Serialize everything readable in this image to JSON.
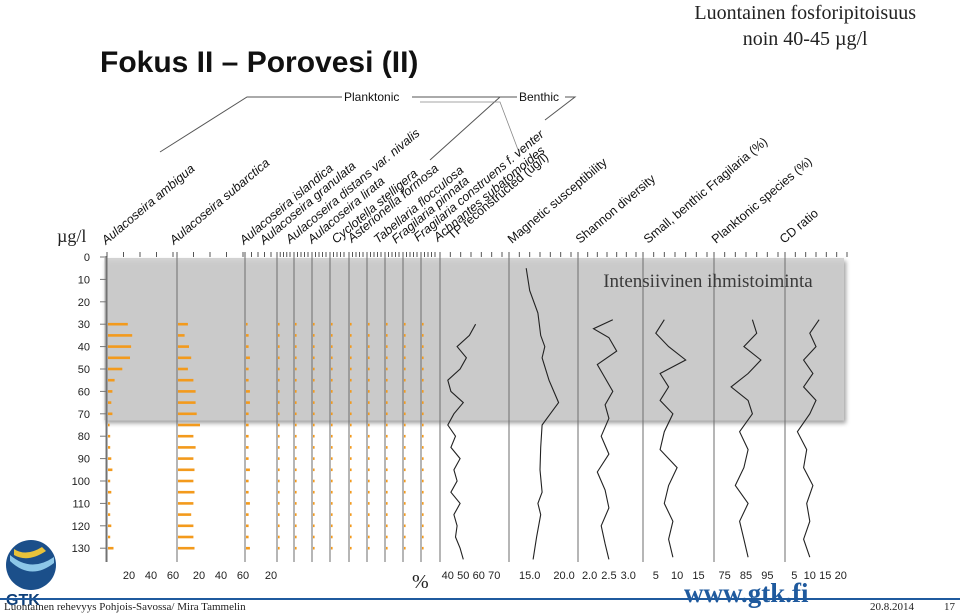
{
  "slide": {
    "title": "Fokus II – Porovesi (II)",
    "note_line1": "Luontainen fosforipitoisuus",
    "note_line2": "noin 40-45 µg/l",
    "footer_left": "Luontainen rehevyys Pohjois-Savossa/ Mira Tammelin",
    "footer_date": "20.8.2014",
    "footer_page": "17",
    "website": "www.gtk.fi",
    "logo_text": "GTK",
    "brand_color": "#1f5a9e"
  },
  "chart_data": {
    "type": "stratigraphic",
    "y_axis": {
      "label": "µg/l",
      "ticks": [
        0,
        10,
        20,
        30,
        40,
        50,
        60,
        70,
        80,
        90,
        100,
        110,
        120,
        130
      ],
      "range": [
        0,
        135
      ]
    },
    "group_labels": {
      "planktonic": "Planktonic",
      "benthic": "Benthic"
    },
    "shaded_zone": {
      "label": "Intensiivinen ihmistoiminta",
      "depth_range": [
        0,
        72
      ]
    },
    "x_unit_label": "%",
    "bar_color": "#f39a1c",
    "depths": [
      30,
      35,
      40,
      45,
      50,
      55,
      60,
      65,
      70,
      75,
      80,
      85,
      90,
      95,
      100,
      105,
      110,
      115,
      120,
      125,
      130
    ],
    "taxa": [
      {
        "name": "Aulacoseira ambigua",
        "max": 60,
        "ticks": [
          "20",
          "40",
          "60"
        ],
        "values": [
          18,
          22,
          21,
          20,
          13,
          6,
          4,
          3,
          4,
          1,
          2,
          2,
          3,
          4,
          2,
          3,
          2,
          2,
          3,
          2,
          5
        ]
      },
      {
        "name": "Aulacoseira subarctica",
        "max": 60,
        "ticks": [
          "20",
          "40",
          "60"
        ],
        "values": [
          9,
          6,
          10,
          12,
          9,
          14,
          16,
          16,
          17,
          20,
          14,
          16,
          14,
          15,
          14,
          15,
          14,
          12,
          14,
          14,
          15
        ]
      },
      {
        "name": "Aulacoseira islandica",
        "max": 20,
        "ticks": [
          "20"
        ],
        "values": [
          1,
          2,
          2,
          3,
          2,
          2,
          3,
          3,
          2,
          2,
          2,
          2,
          2,
          3,
          2,
          2,
          3,
          2,
          2,
          2,
          3
        ]
      },
      {
        "name": "Aulacoseira granulata",
        "values": [
          1,
          1,
          2,
          1,
          1,
          1,
          2,
          1,
          1,
          1,
          1,
          2,
          1,
          1,
          1,
          1,
          2,
          1,
          1,
          1,
          1
        ]
      },
      {
        "name": "Aulacoseira distans var. nivalis",
        "values": [
          1,
          1,
          1,
          2,
          1,
          1,
          1,
          1,
          1,
          1,
          1,
          1,
          1,
          1,
          1,
          1,
          1,
          1,
          1,
          1,
          1
        ]
      },
      {
        "name": "Aulacoseira lirata",
        "values": [
          1,
          1,
          1,
          1,
          1,
          1,
          1,
          1,
          1,
          1,
          1,
          1,
          1,
          1,
          1,
          1,
          1,
          1,
          1,
          1,
          1
        ]
      },
      {
        "name": "Cyclotella stelligera",
        "values": [
          1,
          1,
          2,
          1,
          1,
          1,
          1,
          1,
          1,
          1,
          1,
          1,
          1,
          1,
          1,
          1,
          1,
          1,
          1,
          1,
          1
        ]
      },
      {
        "name": "Asterionella formosa",
        "values": [
          1,
          1,
          1,
          1,
          1,
          2,
          1,
          1,
          1,
          1,
          1,
          1,
          1,
          1,
          1,
          1,
          1,
          1,
          1,
          1,
          1
        ]
      },
      {
        "name": "Tabellaria flocculosa",
        "values": [
          1,
          1,
          1,
          1,
          1,
          1,
          1,
          1,
          1,
          1,
          1,
          1,
          1,
          1,
          1,
          1,
          1,
          1,
          1,
          1,
          1
        ]
      },
      {
        "name": "Fragilaria pinnata",
        "values": [
          1,
          1,
          1,
          1,
          1,
          1,
          1,
          1,
          1,
          1,
          1,
          1,
          1,
          1,
          1,
          1,
          1,
          1,
          1,
          1,
          1
        ]
      },
      {
        "name": "Fragilaria construens f. venter",
        "values": [
          1,
          1,
          1,
          1,
          1,
          1,
          1,
          1,
          1,
          1,
          1,
          1,
          1,
          1,
          1,
          1,
          1,
          1,
          1,
          1,
          1
        ]
      },
      {
        "name": "Achnantes subatomoides",
        "values": [
          1,
          1,
          1,
          1,
          1,
          1,
          1,
          1,
          1,
          1,
          1,
          1,
          1,
          1,
          1,
          1,
          1,
          1,
          1,
          1,
          1
        ]
      }
    ],
    "curves": [
      {
        "name": "TP reconstructed (ug/l)",
        "ticks": [
          40,
          50,
          60,
          70
        ],
        "range": [
          35,
          75
        ],
        "depths": [
          30,
          35,
          40,
          45,
          50,
          55,
          60,
          65,
          70,
          75,
          80,
          85,
          90,
          95,
          100,
          105,
          110,
          115,
          120,
          125,
          130,
          135
        ],
        "values": [
          58,
          54,
          46,
          52,
          48,
          40,
          42,
          50,
          44,
          40,
          45,
          42,
          48,
          44,
          46,
          42,
          48,
          44,
          46,
          45,
          48,
          50
        ]
      },
      {
        "name": "Magnetic susceptibility",
        "ticks": [
          15.0,
          20.0
        ],
        "range": [
          12,
          21
        ],
        "depths": [
          5,
          15,
          25,
          35,
          40,
          45,
          55,
          65,
          70,
          75,
          85,
          95,
          105,
          110,
          115,
          125,
          135
        ],
        "values": [
          14.5,
          15.0,
          16.2,
          16.6,
          17.2,
          16.8,
          17.8,
          19.2,
          18.0,
          16.8,
          16.6,
          16.5,
          16.8,
          16.2,
          16.6,
          16.0,
          15.5
        ]
      },
      {
        "name": "Shannon diversity",
        "ticks": [
          2.0,
          2.5,
          3.0
        ],
        "range": [
          1.7,
          3.2
        ],
        "depths": [
          28,
          32,
          36,
          42,
          48,
          54,
          60,
          66,
          72,
          80,
          88,
          96,
          104,
          112,
          120,
          128,
          135
        ],
        "values": [
          2.6,
          2.1,
          2.5,
          2.7,
          2.2,
          2.4,
          2.6,
          2.4,
          2.5,
          2.3,
          2.5,
          2.2,
          2.4,
          2.5,
          2.3,
          2.4,
          2.5
        ]
      },
      {
        "name": "Small, benthic Fragilaria (%)",
        "ticks": [
          5,
          10,
          15
        ],
        "range": [
          2,
          17
        ],
        "depths": [
          28,
          34,
          40,
          46,
          52,
          58,
          64,
          70,
          78,
          86,
          94,
          102,
          110,
          118,
          126,
          134
        ],
        "values": [
          7,
          5,
          8,
          12,
          6,
          8,
          6,
          9,
          7,
          6,
          10,
          8,
          7,
          9,
          8,
          9
        ]
      },
      {
        "name": "Planktonic species (%)",
        "ticks": [
          75,
          85,
          95
        ],
        "range": [
          70,
          100
        ],
        "depths": [
          28,
          34,
          40,
          46,
          52,
          58,
          64,
          70,
          78,
          86,
          94,
          102,
          110,
          118,
          126,
          134
        ],
        "values": [
          88,
          90,
          84,
          92,
          86,
          78,
          86,
          88,
          82,
          86,
          84,
          80,
          86,
          82,
          84,
          86
        ]
      },
      {
        "name": "CD ratio",
        "ticks": [
          5,
          10,
          15,
          20
        ],
        "range": [
          2,
          22
        ],
        "depths": [
          28,
          34,
          40,
          46,
          52,
          58,
          64,
          70,
          78,
          86,
          94,
          102,
          110,
          118,
          126,
          134
        ],
        "values": [
          13,
          10,
          12,
          8,
          11,
          8,
          12,
          10,
          6,
          9,
          8,
          11,
          9,
          10,
          8,
          10
        ]
      }
    ]
  }
}
